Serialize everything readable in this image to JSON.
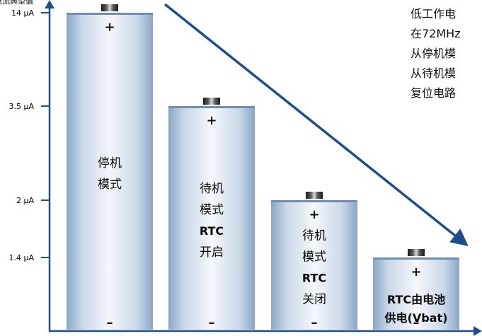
{
  "chart_data": {
    "type": "bar",
    "title": "电流典型值",
    "y_unit": "μA",
    "y_ticks": [
      "14 μA",
      "3.5 μA",
      "2 μA",
      "1.4 μA"
    ],
    "categories": [
      [
        "停机",
        "模式"
      ],
      [
        "待机",
        "模式",
        "RTC",
        "开启"
      ],
      [
        "待机",
        "模式",
        "RTC",
        "关闭"
      ],
      [
        "RTC由电池",
        "供电(Vbat)"
      ]
    ],
    "values": [
      14,
      3.5,
      2,
      1.4
    ],
    "battery_plus": "+",
    "battery_minus": "–",
    "notes": [
      "低工作电",
      "在72MHz",
      "从停机模",
      "从待机模",
      "复位电路"
    ],
    "colors": {
      "axis": "#1d4f8c",
      "arrow": "#1e4d8f",
      "battery_light": "#f4f7fb",
      "battery_mid": "#c2d2e4",
      "battery_dark": "#7f9dbf"
    }
  }
}
